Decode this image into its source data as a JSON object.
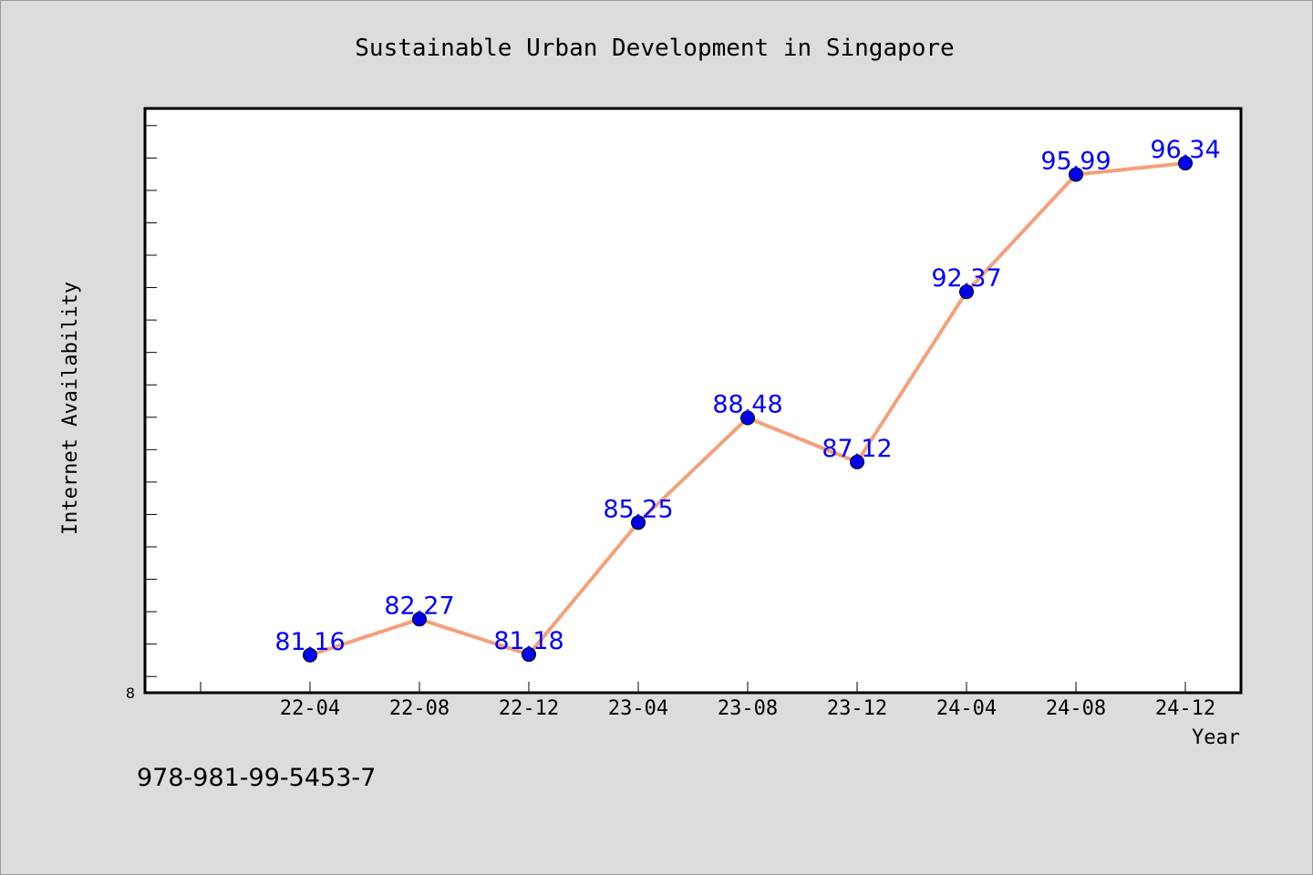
{
  "chart_data": {
    "type": "line",
    "title": "Sustainable Urban Development in Singapore",
    "xlabel": "Year",
    "ylabel": "Internet Availability",
    "categories": [
      "22-04",
      "22-08",
      "22-12",
      "23-04",
      "23-08",
      "23-12",
      "24-04",
      "24-08",
      "24-12"
    ],
    "series": [
      {
        "values": [
          81.16,
          82.27,
          81.18,
          85.25,
          88.48,
          87.12,
          92.37,
          95.99,
          96.34
        ],
        "labels": [
          "81.16",
          "82.27",
          "81.18",
          "85.25",
          "88.48",
          "87.12",
          "92.37",
          "95.99",
          "96.34"
        ],
        "line_color": "#f4a07a",
        "marker_color": "#0000ee"
      }
    ],
    "ylim": [
      80.0,
      98.0
    ],
    "y_tick_labels": [
      "8"
    ],
    "grid": false,
    "legend": "none",
    "label_color": "#0000ff"
  },
  "footer": {
    "isbn": "978-981-99-5453-7"
  },
  "colors": {
    "background": "#dcdcdc",
    "plot_background": "#ffffff",
    "axis": "#000000"
  }
}
